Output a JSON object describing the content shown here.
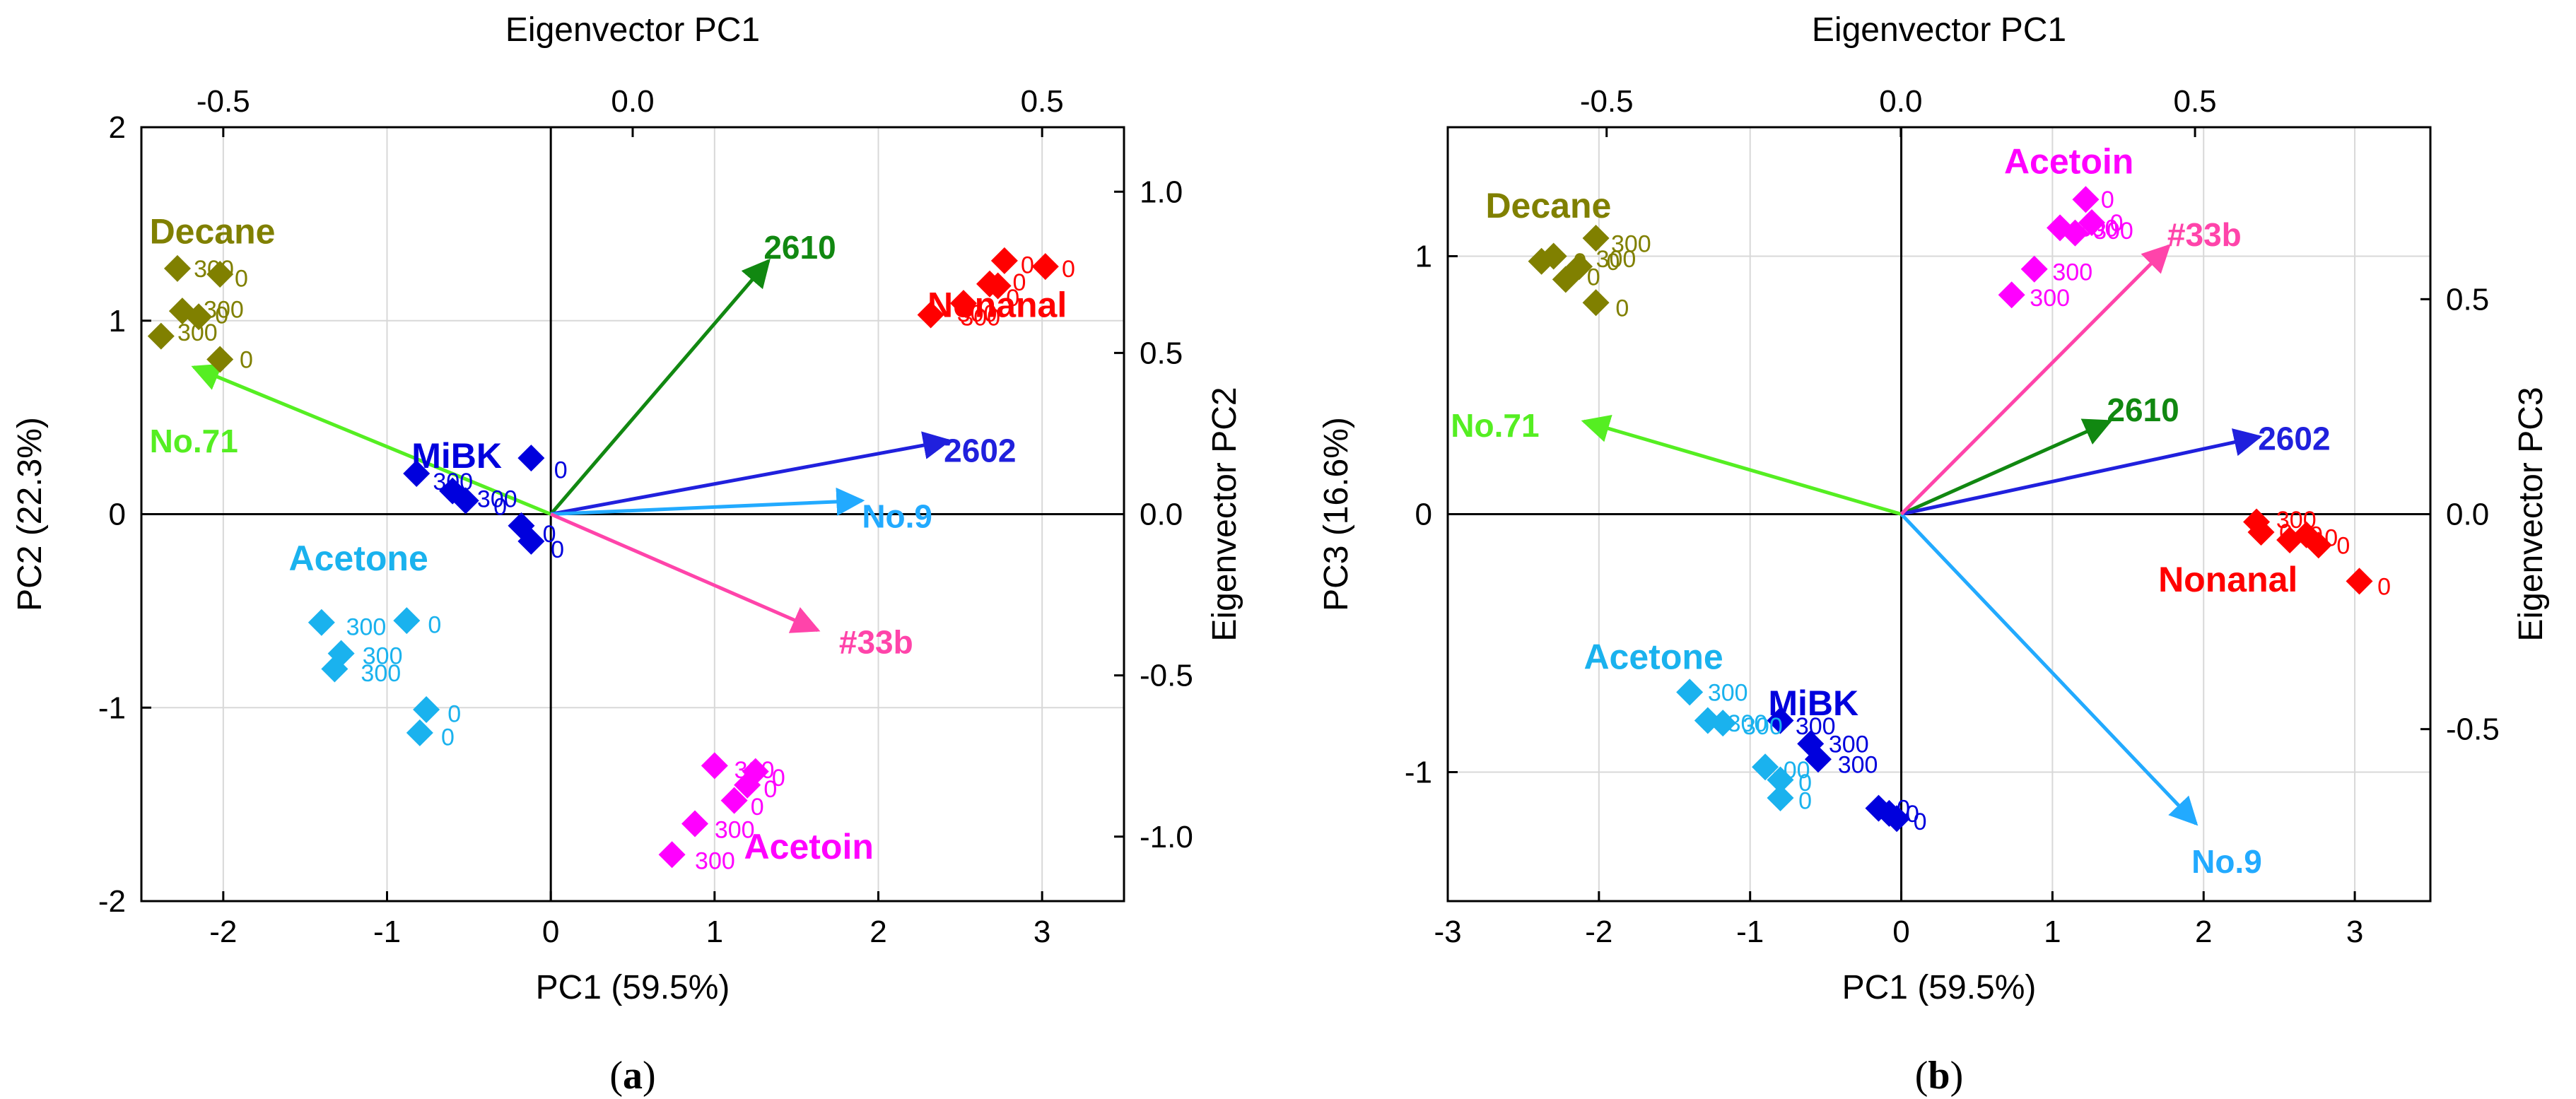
{
  "colors": {
    "decane": "#808000",
    "nonanal": "#ff0000",
    "mibk": "#0000dd",
    "acetone": "#1ab2ee",
    "acetoin": "#ff00ff",
    "no71": "#55ee22",
    "v2610": "#118811",
    "v2602": "#2020dd",
    "no9": "#22aaff",
    "v33b": "#ff44aa"
  },
  "chart_data": [
    {
      "type": "scatter",
      "caption_letter": "a",
      "x_title": "PC1 (59.5%)",
      "y_title": "PC2 (22.3%)",
      "top_title": "Eigenvector PC1",
      "right_title": "Eigenvector PC2",
      "xlim": [
        -2.5,
        3.5
      ],
      "ylim": [
        -2,
        2
      ],
      "x_ticks": [
        -2,
        -1,
        0,
        1,
        2,
        3
      ],
      "x_tick_labels": [
        "-2",
        "-1",
        "0",
        "1",
        "2",
        "3"
      ],
      "y_ticks": [
        -2,
        -1,
        0,
        1,
        2
      ],
      "y_tick_labels": [
        "-2",
        "-1",
        "0",
        "1",
        "2"
      ],
      "top_ticks": [
        -0.5,
        0.0,
        0.5
      ],
      "top_tick_labels": [
        "-0.5",
        "0.0",
        "0.5"
      ],
      "right_ticks": [
        -1.0,
        -0.5,
        0.0,
        0.5,
        1.0
      ],
      "right_tick_labels": [
        "-1.0",
        "-0.5",
        "0.0",
        "0.5",
        "1.0"
      ],
      "top_lim": [
        -0.6,
        0.6
      ],
      "right_lim": [
        -1.2,
        1.2
      ],
      "groups": [
        {
          "name": "Decane",
          "color_key": "decane",
          "label_at": [
            -2.45,
            1.4
          ],
          "points": [
            [
              -2.28,
              1.27
            ],
            [
              -2.02,
              1.24
            ],
            [
              -2.25,
              1.05
            ],
            [
              -2.15,
              1.02
            ],
            [
              -2.38,
              0.92
            ],
            [
              -2.02,
              0.8
            ]
          ],
          "point_labels": [
            [
              "300",
              -2.18,
              1.27
            ],
            [
              "0",
              -1.93,
              1.22
            ],
            [
              "300",
              -2.12,
              1.06
            ],
            [
              "0",
              -2.05,
              1.03
            ],
            [
              "300",
              -2.28,
              0.94
            ],
            [
              "0",
              -1.9,
              0.8
            ]
          ]
        },
        {
          "name": "Nonanal",
          "color_key": "nonanal",
          "label_at": [
            2.3,
            1.02
          ],
          "points": [
            [
              3.02,
              1.28
            ],
            [
              2.77,
              1.31
            ],
            [
              2.68,
              1.19
            ],
            [
              2.52,
              1.09
            ],
            [
              2.32,
              1.03
            ],
            [
              2.73,
              1.18
            ]
          ],
          "point_labels": [
            [
              "0",
              3.12,
              1.27
            ],
            [
              "0",
              2.87,
              1.29
            ],
            [
              "0",
              2.78,
              1.12
            ],
            [
              "300",
              2.5,
              1.02
            ],
            [
              "300",
              2.48,
              1.04
            ],
            [
              "0",
              2.82,
              1.2
            ]
          ]
        },
        {
          "name": "MiBK",
          "color_key": "mibk",
          "label_at": [
            -0.85,
            0.24
          ],
          "points": [
            [
              -0.82,
              0.21
            ],
            [
              -0.12,
              0.29
            ],
            [
              -0.6,
              0.12
            ],
            [
              -0.52,
              0.07
            ],
            [
              -0.18,
              -0.06
            ],
            [
              -0.12,
              -0.14
            ]
          ],
          "point_labels": [
            [
              "300",
              -0.72,
              0.17
            ],
            [
              "0",
              0.02,
              0.23
            ],
            [
              "300",
              -0.45,
              0.08
            ],
            [
              "0",
              -0.35,
              0.04
            ],
            [
              "0",
              -0.05,
              -0.1
            ],
            [
              "0",
              0.0,
              -0.18
            ]
          ]
        },
        {
          "name": "Acetone",
          "color_key": "acetone",
          "label_at": [
            -1.6,
            -0.29
          ],
          "points": [
            [
              -1.4,
              -0.56
            ],
            [
              -0.88,
              -0.55
            ],
            [
              -1.28,
              -0.72
            ],
            [
              -1.32,
              -0.8
            ],
            [
              -0.76,
              -1.01
            ],
            [
              -0.8,
              -1.13
            ]
          ],
          "point_labels": [
            [
              "300",
              -1.25,
              -0.58
            ],
            [
              "0",
              -0.75,
              -0.57
            ],
            [
              "300",
              -1.15,
              -0.73
            ],
            [
              "300",
              -1.16,
              -0.82
            ],
            [
              "0",
              -0.63,
              -1.03
            ],
            [
              "0",
              -0.67,
              -1.15
            ]
          ]
        },
        {
          "name": "Acetoin",
          "color_key": "acetoin",
          "label_at": [
            1.18,
            -1.78
          ],
          "points": [
            [
              1.0,
              -1.3
            ],
            [
              1.25,
              -1.33
            ],
            [
              1.2,
              -1.4
            ],
            [
              1.12,
              -1.48
            ],
            [
              0.88,
              -1.6
            ],
            [
              0.74,
              -1.76
            ]
          ],
          "point_labels": [
            [
              "300",
              1.12,
              -1.32
            ],
            [
              "0",
              1.35,
              -1.36
            ],
            [
              "0",
              1.3,
              -1.42
            ],
            [
              "0",
              1.22,
              -1.51
            ],
            [
              "300",
              1.0,
              -1.63
            ],
            [
              "300",
              0.88,
              -1.79
            ]
          ]
        }
      ],
      "vectors": [
        {
          "name": "No.71",
          "color_key": "no71",
          "end": [
            -2.18,
            0.76
          ],
          "label_at": [
            -2.45,
            0.32
          ]
        },
        {
          "name": "2610",
          "color_key": "v2610",
          "end": [
            1.33,
            1.31
          ],
          "label_at": [
            1.3,
            1.32
          ]
        },
        {
          "name": "2602",
          "color_key": "v2602",
          "end": [
            2.43,
            0.38
          ],
          "label_at": [
            2.4,
            0.27
          ]
        },
        {
          "name": "No.9",
          "color_key": "no9",
          "end": [
            1.9,
            0.07
          ],
          "label_at": [
            1.9,
            -0.07
          ]
        },
        {
          "name": "#33b",
          "color_key": "v33b",
          "end": [
            1.63,
            -0.6
          ],
          "label_at": [
            1.76,
            -0.72
          ]
        }
      ]
    },
    {
      "type": "scatter",
      "caption_letter": "b",
      "x_title": "PC1 (59.5%)",
      "y_title": "PC3 (16.6%)",
      "top_title": "Eigenvector PC1",
      "right_title": "Eigenvector PC3",
      "xlim": [
        -3,
        3.5
      ],
      "ylim": [
        -1.5,
        1.5
      ],
      "x_ticks": [
        -3,
        -2,
        -1,
        0,
        1,
        2,
        3
      ],
      "x_tick_labels": [
        "-3",
        "-2",
        "-1",
        "0",
        "1",
        "2",
        "3"
      ],
      "y_ticks": [
        -1,
        0,
        1
      ],
      "y_tick_labels": [
        "-1",
        "0",
        "1"
      ],
      "top_ticks": [
        -0.5,
        0.0,
        0.5
      ],
      "top_tick_labels": [
        "-0.5",
        "0.0",
        "0.5"
      ],
      "right_ticks": [
        -0.5,
        0.0,
        0.5
      ],
      "right_tick_labels": [
        "-0.5",
        "0.0",
        "0.5"
      ],
      "top_lim": [
        -0.77,
        0.9
      ],
      "right_lim": [
        -0.9,
        0.9
      ],
      "groups": [
        {
          "name": "Decane",
          "color_key": "decane",
          "label_at": [
            -2.75,
            1.15
          ],
          "points": [
            [
              -2.02,
              1.07
            ],
            [
              -2.3,
              1.0
            ],
            [
              -2.38,
              0.98
            ],
            [
              -2.13,
              0.96
            ],
            [
              -2.22,
              0.91
            ],
            [
              -2.02,
              0.82
            ]
          ],
          "point_labels": [
            [
              "300",
              -1.92,
              1.05
            ],
            [
              "0",
              -2.17,
              0.98
            ],
            [
              "300",
              -2.02,
              0.99
            ],
            [
              "0",
              -1.95,
              0.98
            ],
            [
              "0",
              -2.08,
              0.92
            ],
            [
              "0",
              -1.89,
              0.8
            ]
          ]
        },
        {
          "name": "Nonanal",
          "color_key": "nonanal",
          "label_at": [
            1.7,
            -0.3
          ],
          "points": [
            [
              2.35,
              -0.03
            ],
            [
              2.38,
              -0.07
            ],
            [
              2.57,
              -0.1
            ],
            [
              2.68,
              -0.08
            ],
            [
              2.76,
              -0.12
            ],
            [
              3.03,
              -0.26
            ]
          ],
          "point_labels": [
            [
              "300",
              2.48,
              -0.02
            ],
            [
              "0",
              2.5,
              -0.07
            ],
            [
              "0",
              2.7,
              -0.08
            ],
            [
              "0",
              2.8,
              -0.09
            ],
            [
              "0",
              2.88,
              -0.12
            ],
            [
              "0",
              3.15,
              -0.28
            ]
          ]
        },
        {
          "name": "MiBK",
          "color_key": "mibk",
          "label_at": [
            -0.88,
            -0.78
          ],
          "points": [
            [
              -0.8,
              -0.8
            ],
            [
              -0.6,
              -0.89
            ],
            [
              -0.55,
              -0.95
            ],
            [
              -0.15,
              -1.14
            ],
            [
              -0.08,
              -1.16
            ],
            [
              -0.03,
              -1.18
            ]
          ],
          "point_labels": [
            [
              "300",
              -0.7,
              -0.82
            ],
            [
              "300",
              -0.48,
              -0.89
            ],
            [
              "300",
              -0.42,
              -0.97
            ],
            [
              "0",
              -0.03,
              -1.14
            ],
            [
              "0",
              0.03,
              -1.16
            ],
            [
              "0",
              0.08,
              -1.19
            ]
          ]
        },
        {
          "name": "Acetone",
          "color_key": "acetone",
          "label_at": [
            -2.1,
            -0.6
          ],
          "points": [
            [
              -1.4,
              -0.69
            ],
            [
              -1.28,
              -0.8
            ],
            [
              -1.18,
              -0.81
            ],
            [
              -0.9,
              -0.98
            ],
            [
              -0.8,
              -1.03
            ],
            [
              -0.8,
              -1.1
            ]
          ],
          "point_labels": [
            [
              "300",
              -1.28,
              -0.69
            ],
            [
              "300",
              -1.15,
              -0.81
            ],
            [
              "300",
              -1.05,
              -0.82
            ],
            [
              "00",
              -0.78,
              -0.99
            ],
            [
              "0",
              -0.68,
              -1.04
            ],
            [
              "0",
              -0.68,
              -1.11
            ]
          ]
        },
        {
          "name": "Acetoin",
          "color_key": "acetoin",
          "label_at": [
            0.68,
            1.32
          ],
          "points": [
            [
              1.22,
              1.22
            ],
            [
              1.26,
              1.13
            ],
            [
              1.05,
              1.11
            ],
            [
              1.15,
              1.09
            ],
            [
              0.88,
              0.95
            ],
            [
              0.73,
              0.85
            ]
          ],
          "point_labels": [
            [
              "0",
              1.32,
              1.22
            ],
            [
              "0",
              1.38,
              1.13
            ],
            [
              "300",
              1.17,
              1.11
            ],
            [
              "300",
              1.27,
              1.1
            ],
            [
              "300",
              1.0,
              0.94
            ],
            [
              "300",
              0.85,
              0.84
            ]
          ]
        }
      ],
      "vectors": [
        {
          "name": "No.71",
          "color_key": "no71",
          "end": [
            -2.1,
            0.36
          ],
          "label_at": [
            -2.98,
            0.3
          ]
        },
        {
          "name": "2610",
          "color_key": "v2610",
          "end": [
            1.38,
            0.36
          ],
          "label_at": [
            1.36,
            0.36
          ]
        },
        {
          "name": "2602",
          "color_key": "v2602",
          "end": [
            2.37,
            0.3
          ],
          "label_at": [
            2.36,
            0.25
          ]
        },
        {
          "name": "No.9",
          "color_key": "no9",
          "end": [
            1.95,
            -1.2
          ],
          "label_at": [
            1.92,
            -1.39
          ]
        },
        {
          "name": "#33b",
          "color_key": "v33b",
          "end": [
            1.77,
            1.04
          ],
          "label_at": [
            1.76,
            1.04
          ]
        }
      ]
    }
  ]
}
